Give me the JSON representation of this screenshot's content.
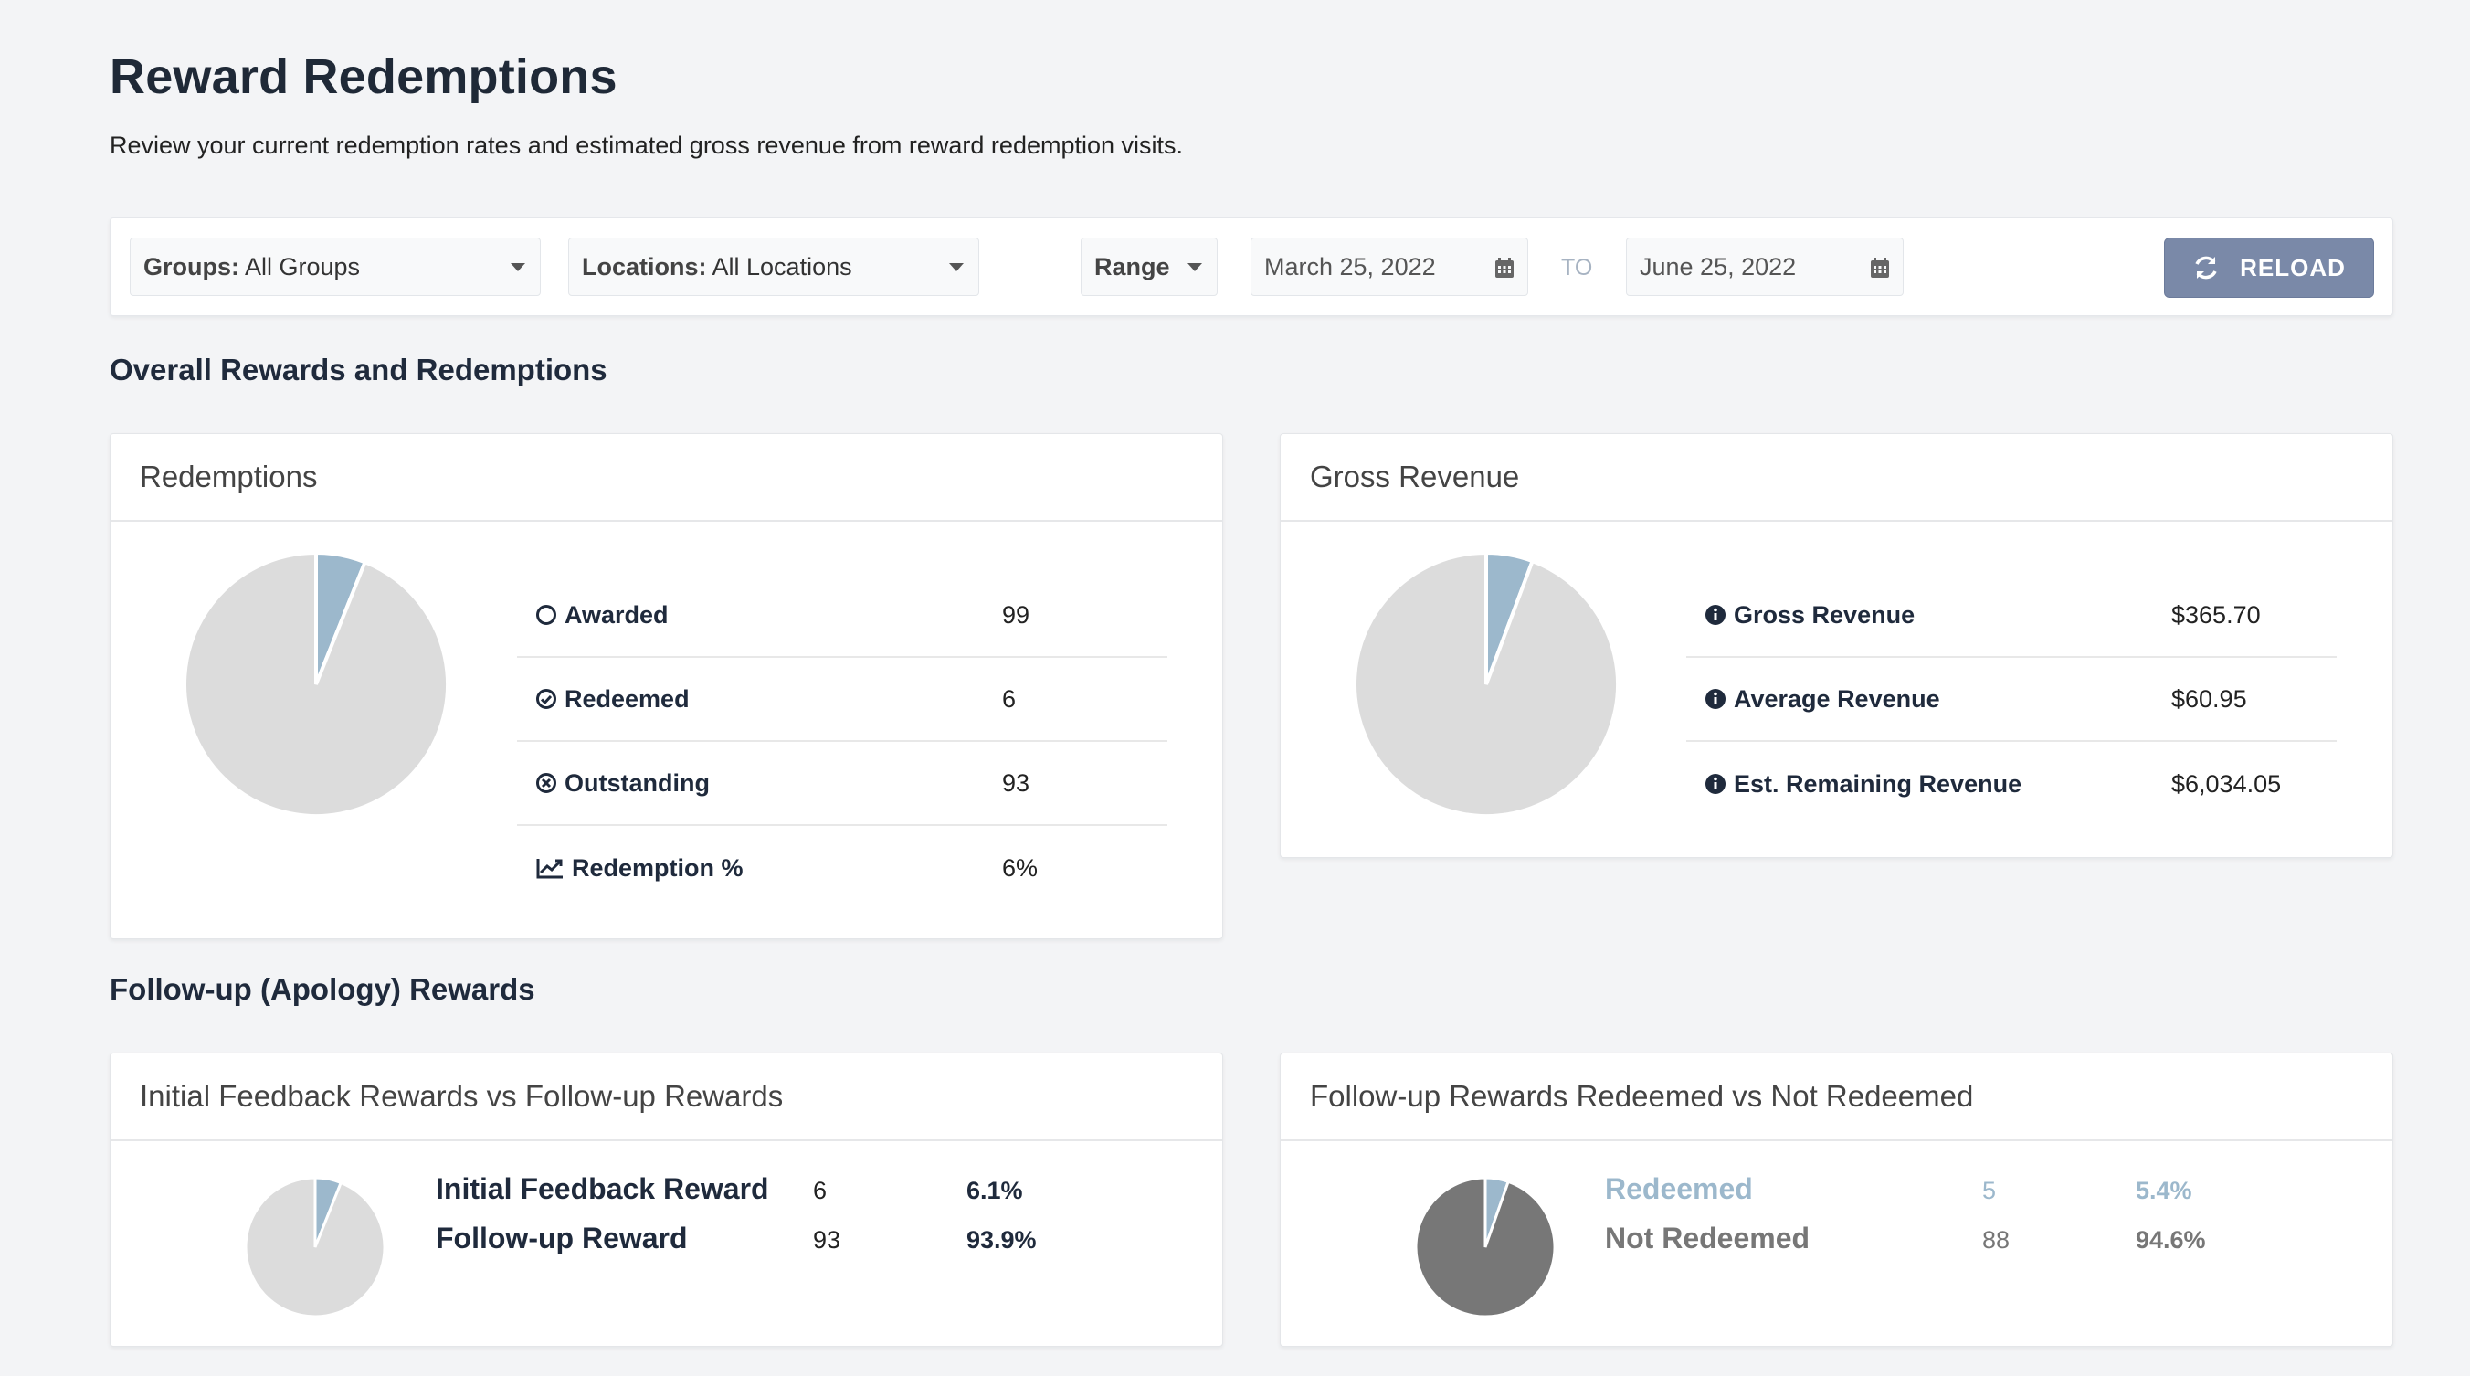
{
  "header": {
    "title": "Reward Redemptions",
    "subtitle": "Review your current redemption rates and estimated gross revenue from reward redemption visits."
  },
  "filters": {
    "groups_label": "Groups:",
    "groups_value": "All Groups",
    "locations_label": "Locations:",
    "locations_value": "All Locations",
    "range_label": "Range",
    "start_date": "March 25, 2022",
    "to_label": "TO",
    "end_date": "June 25, 2022",
    "reload_label": "RELOAD"
  },
  "sections": {
    "overall": "Overall Rewards and Redemptions",
    "followup": "Follow-up (Apology) Rewards"
  },
  "redemptions": {
    "title": "Redemptions",
    "rows": [
      {
        "label": "Awarded",
        "value": "99",
        "icon": "circle-outline-icon"
      },
      {
        "label": "Redeemed",
        "value": "6",
        "icon": "check-circle-icon"
      },
      {
        "label": "Outstanding",
        "value": "93",
        "icon": "times-circle-icon"
      },
      {
        "label": "Redemption %",
        "value": "6%",
        "icon": "line-chart-icon"
      }
    ]
  },
  "gross_revenue": {
    "title": "Gross Revenue",
    "rows": [
      {
        "label": "Gross Revenue",
        "value": "$365.70",
        "icon": "info-icon"
      },
      {
        "label": "Average Revenue",
        "value": "$60.95",
        "icon": "info-icon"
      },
      {
        "label": "Est. Remaining Revenue",
        "value": "$6,034.05",
        "icon": "info-icon"
      }
    ]
  },
  "initial_vs_followup": {
    "title": "Initial Feedback Rewards vs Follow-up Rewards",
    "rows": [
      {
        "label": "Initial Feedback Reward",
        "count": "6",
        "pct": "6.1%"
      },
      {
        "label": "Follow-up Reward",
        "count": "93",
        "pct": "93.9%"
      }
    ]
  },
  "followup_redeemed": {
    "title": "Follow-up Rewards Redeemed vs Not Redeemed",
    "rows": [
      {
        "label": "Redeemed",
        "count": "5",
        "pct": "5.4%"
      },
      {
        "label": "Not Redeemed",
        "count": "88",
        "pct": "94.6%"
      }
    ]
  },
  "colors": {
    "accent": "#9cb8cc",
    "pie_bg_light": "#dcdcdc",
    "pie_bg_dark": "#777777",
    "reload_bg": "#7a89a8"
  },
  "chart_data": [
    {
      "type": "pie",
      "labels": [
        "Redeemed",
        "Outstanding"
      ],
      "values": [
        6,
        93
      ]
    },
    {
      "type": "pie",
      "labels": [
        "Gross Revenue",
        "Est. Remaining Revenue"
      ],
      "values": [
        365.7,
        6034.05
      ]
    },
    {
      "type": "pie",
      "labels": [
        "Initial Feedback Reward",
        "Follow-up Reward"
      ],
      "values": [
        6,
        93
      ]
    },
    {
      "type": "pie",
      "labels": [
        "Redeemed",
        "Not Redeemed"
      ],
      "values": [
        5,
        88
      ]
    }
  ]
}
